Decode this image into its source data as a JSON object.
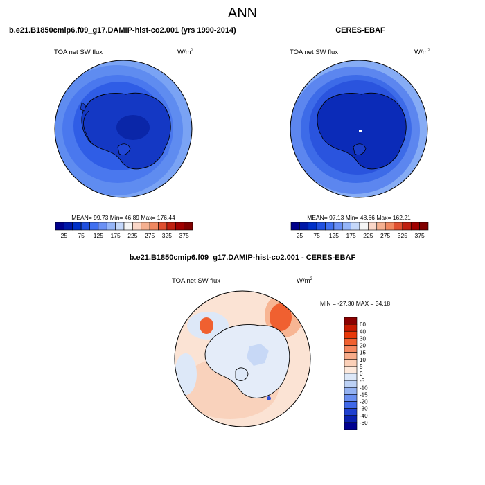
{
  "title": "ANN",
  "panels": [
    {
      "title": "b.e21.B1850cmip6.f09_g17.DAMIP-hist-co2.001 (yrs 1990-2014)",
      "variable": "TOA net SW flux",
      "units_base": "W/m",
      "units_exp": "2",
      "stats": "MEAN=  99.73  Min=  46.89  Max= 176.44",
      "colorbar_ticks": [
        "25",
        "75",
        "125",
        "175",
        "225",
        "275",
        "325",
        "375"
      ]
    },
    {
      "title": "CERES-EBAF",
      "variable": "TOA net SW flux",
      "units_base": "W/m",
      "units_exp": "2",
      "stats": "MEAN=  97.13  Min=  48.66  Max= 162.21",
      "colorbar_ticks": [
        "25",
        "75",
        "125",
        "175",
        "225",
        "275",
        "325",
        "375"
      ]
    },
    {
      "title": "b.e21.B1850cmip6.f09_g17.DAMIP-hist-co2.001 - CERES-EBAF",
      "variable": "TOA net SW flux",
      "units_base": "W/m",
      "units_exp": "2",
      "stats": "MIN = -27.30 MAX =  34.18",
      "colorbar_ticks": [
        "60",
        "40",
        "30",
        "20",
        "15",
        "10",
        "5",
        "0",
        "-5",
        "-10",
        "-15",
        "-20",
        "-30",
        "-40",
        "-60"
      ]
    }
  ],
  "chart_data": [
    {
      "type": "heatmap",
      "projection": "polar stereographic (south pole)",
      "title": "b.e21.B1850cmip6.f09_g17.DAMIP-hist-co2.001 (yrs 1990-2014)",
      "variable": "TOA net SW flux",
      "units": "W/m2",
      "mean": 99.73,
      "min": 46.89,
      "max": 176.44,
      "levels": [
        25,
        50,
        75,
        100,
        125,
        150,
        175,
        200,
        225,
        250,
        275,
        300,
        325,
        350,
        375
      ],
      "colors": [
        "#00008b",
        "#0018a8",
        "#0030c8",
        "#2050e0",
        "#4070f0",
        "#6a90f5",
        "#95b5f8",
        "#c5d8fa",
        "#f5f5f5",
        "#fad7c8",
        "#f5b090",
        "#f08860",
        "#e05030",
        "#c02010",
        "#a00000",
        "#800000"
      ]
    },
    {
      "type": "heatmap",
      "projection": "polar stereographic (south pole)",
      "title": "CERES-EBAF",
      "variable": "TOA net SW flux",
      "units": "W/m2",
      "mean": 97.13,
      "min": 48.66,
      "max": 162.21,
      "levels": [
        25,
        50,
        75,
        100,
        125,
        150,
        175,
        200,
        225,
        250,
        275,
        300,
        325,
        350,
        375
      ],
      "colors": [
        "#00008b",
        "#0018a8",
        "#0030c8",
        "#2050e0",
        "#4070f0",
        "#6a90f5",
        "#95b5f8",
        "#c5d8fa",
        "#f5f5f5",
        "#fad7c8",
        "#f5b090",
        "#f08860",
        "#e05030",
        "#c02010",
        "#a00000",
        "#800000"
      ]
    },
    {
      "type": "heatmap",
      "projection": "polar stereographic (south pole)",
      "title": "b.e21.B1850cmip6.f09_g17.DAMIP-hist-co2.001 - CERES-EBAF",
      "variable": "TOA net SW flux",
      "units": "W/m2",
      "min": -27.3,
      "max": 34.18,
      "levels": [
        -60,
        -40,
        -30,
        -20,
        -15,
        -10,
        -5,
        0,
        5,
        10,
        15,
        20,
        30,
        40,
        60
      ],
      "colors_top_to_bottom": [
        "#8b0000",
        "#c81a00",
        "#e83808",
        "#f06030",
        "#f58860",
        "#f8ac8a",
        "#fbd0b8",
        "#fde9dc",
        "#dde8f8",
        "#bcd1f5",
        "#94b2f2",
        "#6a8ff0",
        "#3f68e8",
        "#1f40d0",
        "#0a20b0",
        "#000090"
      ]
    }
  ]
}
